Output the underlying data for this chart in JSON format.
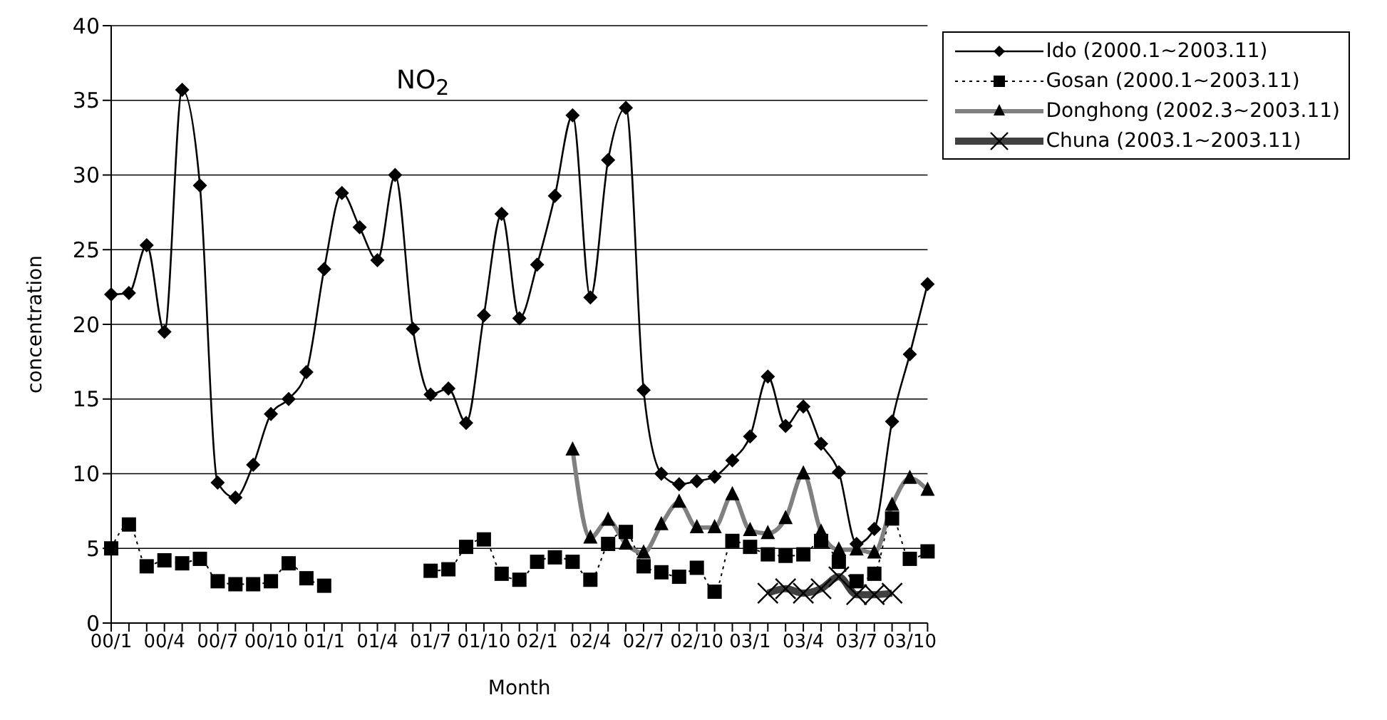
{
  "chart_data": {
    "type": "line",
    "title": "NO$_{2}$",
    "xlabel": "Month",
    "ylabel": "concentration",
    "categories": [
      "00/1",
      null,
      null,
      "00/4",
      null,
      null,
      "00/7",
      null,
      null,
      "00/10",
      null,
      null,
      "01/1",
      null,
      null,
      "01/4",
      null,
      null,
      "01/7",
      null,
      null,
      "01/10",
      null,
      null,
      "02/1",
      null,
      null,
      "02/4",
      null,
      null,
      "02/7",
      null,
      null,
      "02/10",
      null,
      null,
      "03/1",
      null,
      null,
      "03/4",
      null,
      null,
      "03/7",
      null,
      null,
      "03/10",
      null
    ],
    "ylim": [
      0,
      40
    ],
    "yticks": [
      0,
      5,
      10,
      15,
      20,
      25,
      30,
      35,
      40
    ],
    "grid": "y",
    "legend": "top right",
    "series": [
      {
        "name": "Ido (2000.1~2003.11)",
        "color": "#000000",
        "marker": "diamond",
        "line_style": "solid",
        "values": [
          22.0,
          22.1,
          25.3,
          19.5,
          35.7,
          29.3,
          9.4,
          8.4,
          10.6,
          14.0,
          15.0,
          16.8,
          23.7,
          28.8,
          26.5,
          24.3,
          30.0,
          19.7,
          15.3,
          15.7,
          13.4,
          20.6,
          27.4,
          20.4,
          24.0,
          28.6,
          34.0,
          21.8,
          31.0,
          34.5,
          15.6,
          10.0,
          9.3,
          9.5,
          9.8,
          10.9,
          12.5,
          16.5,
          13.2,
          14.5,
          12.0,
          10.1,
          5.3,
          6.3,
          13.5,
          18.0,
          22.7
        ]
      },
      {
        "name": "Gosan (2000.1~2003.11)",
        "color": "#000000",
        "marker": "square",
        "line_style": "dotted",
        "values": [
          5.0,
          6.6,
          3.8,
          4.2,
          4.0,
          4.3,
          2.8,
          2.6,
          2.6,
          2.8,
          4.0,
          3.0,
          2.5,
          null,
          null,
          null,
          null,
          null,
          3.5,
          3.6,
          5.1,
          5.6,
          3.3,
          2.9,
          4.1,
          4.4,
          4.1,
          2.9,
          5.3,
          6.1,
          3.8,
          3.4,
          3.1,
          3.7,
          2.1,
          5.5,
          5.1,
          4.6,
          4.5,
          4.6,
          5.5,
          4.1,
          2.8,
          3.3,
          7.0,
          4.3,
          4.8
        ]
      },
      {
        "name": "Donghong (2002.3~2003.11)",
        "color": "#808080",
        "marker": "triangle",
        "line_style": "solid",
        "values": [
          null,
          null,
          null,
          null,
          null,
          null,
          null,
          null,
          null,
          null,
          null,
          null,
          null,
          null,
          null,
          null,
          null,
          null,
          null,
          null,
          null,
          null,
          null,
          null,
          null,
          null,
          11.6,
          5.7,
          6.9,
          5.3,
          4.7,
          6.6,
          8.1,
          6.4,
          6.4,
          8.6,
          6.2,
          6.0,
          7.0,
          10.0,
          6.1,
          4.9,
          4.9,
          4.7,
          7.9,
          9.7,
          8.9
        ]
      },
      {
        "name": "Chuna (2003.1~2003.11)",
        "color": "#404040",
        "marker": "cross",
        "line_style": "solid",
        "values": [
          null,
          null,
          null,
          null,
          null,
          null,
          null,
          null,
          null,
          null,
          null,
          null,
          null,
          null,
          null,
          null,
          null,
          null,
          null,
          null,
          null,
          null,
          null,
          null,
          null,
          null,
          null,
          null,
          null,
          null,
          null,
          null,
          null,
          null,
          null,
          null,
          null,
          2.0,
          2.3,
          2.0,
          2.3,
          3.1,
          1.9,
          1.9,
          2.0,
          null,
          null
        ]
      }
    ]
  }
}
